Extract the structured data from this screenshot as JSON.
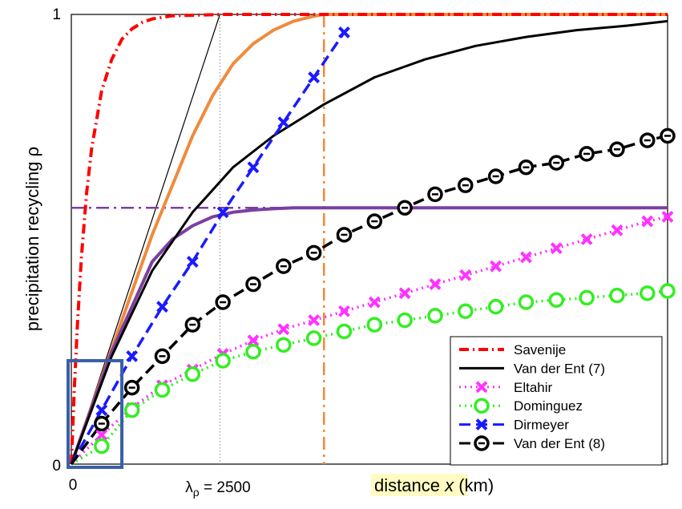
{
  "chart_data": {
    "type": "line",
    "xlabel": {
      "prefix": "distance",
      "var": "x",
      "unit": "(km)"
    },
    "ylabel": "precipitation recycling  ρ",
    "xlim": [
      0,
      5900
    ],
    "ylim": [
      0,
      1
    ],
    "yticks": [
      "0",
      "1"
    ],
    "xtick_zero": "0",
    "lambda_label": {
      "symbol": "λ",
      "sub": "ρ",
      "text": " = 2500"
    },
    "lambda_rho": 2500,
    "reference_lines": {
      "tangent": {
        "x": [
          0,
          1470
        ],
        "y": [
          0,
          1
        ],
        "color": "#000000"
      },
      "lambda_vertical": {
        "x": 1470,
        "color": "#888888"
      },
      "orange_vertical": {
        "x": 2500,
        "color": "#f08a3c"
      },
      "purple_horizontal": {
        "y": 0.57,
        "color": "#7b3fa0"
      }
    },
    "curves": {
      "orange_solid": {
        "color": "#f08a3c",
        "x": [
          0,
          500,
          800,
          1000,
          1200,
          1400,
          1600,
          1800,
          2000,
          2200,
          2400,
          2500,
          2700,
          3000,
          4000,
          5000,
          5900
        ],
        "y": [
          0,
          0.32,
          0.51,
          0.62,
          0.73,
          0.82,
          0.89,
          0.935,
          0.965,
          0.985,
          0.996,
          1.0,
          1.0,
          1.0,
          1.0,
          1.0,
          1.0
        ]
      },
      "purple_solid": {
        "color": "#7b3fa0",
        "x": [
          0,
          400,
          800,
          1000,
          1200,
          1400,
          1600,
          1800,
          2000,
          2200,
          2500,
          3000,
          4000,
          5000,
          5900
        ],
        "y": [
          0,
          0.25,
          0.45,
          0.5,
          0.53,
          0.55,
          0.56,
          0.565,
          0.568,
          0.57,
          0.57,
          0.57,
          0.57,
          0.57,
          0.57
        ]
      }
    },
    "series": [
      {
        "name": "Savenije",
        "color": "#ff0000",
        "style": "dashdot",
        "marker": "none",
        "x": [
          0,
          30,
          60,
          100,
          150,
          200,
          300,
          400,
          500,
          600,
          700,
          800,
          1000,
          1500,
          2500,
          5900
        ],
        "y": [
          0,
          0.17,
          0.31,
          0.46,
          0.6,
          0.7,
          0.83,
          0.9,
          0.945,
          0.968,
          0.982,
          0.99,
          0.997,
          1.0,
          1.0,
          1.0
        ]
      },
      {
        "name": "Van der Ent (7)",
        "color": "#000000",
        "style": "solid",
        "marker": "none",
        "x": [
          0,
          400,
          800,
          1200,
          1600,
          2000,
          2500,
          3000,
          3500,
          4000,
          4500,
          5000,
          5500,
          5900
        ],
        "y": [
          0,
          0.24,
          0.43,
          0.56,
          0.66,
          0.73,
          0.8,
          0.86,
          0.9,
          0.93,
          0.95,
          0.965,
          0.975,
          0.985
        ]
      },
      {
        "name": "Eltahir",
        "color": "#ff33ff",
        "style": "dotted",
        "marker": "x",
        "x": [
          0,
          300,
          600,
          900,
          1200,
          1500,
          1800,
          2100,
          2400,
          2700,
          3000,
          3300,
          3600,
          3900,
          4200,
          4500,
          4800,
          5100,
          5400,
          5700,
          5900
        ],
        "y": [
          0,
          0.065,
          0.125,
          0.175,
          0.21,
          0.245,
          0.275,
          0.3,
          0.32,
          0.34,
          0.36,
          0.38,
          0.4,
          0.42,
          0.44,
          0.46,
          0.48,
          0.5,
          0.52,
          0.54,
          0.55
        ]
      },
      {
        "name": "Dominguez",
        "color": "#33ee22",
        "style": "dotted",
        "marker": "o",
        "x": [
          0,
          300,
          600,
          900,
          1200,
          1500,
          1800,
          2100,
          2400,
          2700,
          3000,
          3300,
          3600,
          3900,
          4200,
          4500,
          4800,
          5100,
          5400,
          5700,
          5900
        ],
        "y": [
          0,
          0.04,
          0.12,
          0.165,
          0.2,
          0.23,
          0.25,
          0.265,
          0.28,
          0.295,
          0.31,
          0.32,
          0.33,
          0.34,
          0.35,
          0.36,
          0.365,
          0.37,
          0.375,
          0.38,
          0.385
        ]
      },
      {
        "name": "Dirmeyer",
        "color": "#1a1aff",
        "style": "dashed",
        "marker": "x",
        "x": [
          0,
          300,
          600,
          900,
          1200,
          1500,
          1800,
          2100,
          2400,
          2700
        ],
        "y": [
          0,
          0.12,
          0.24,
          0.35,
          0.45,
          0.56,
          0.66,
          0.76,
          0.86,
          0.96
        ]
      },
      {
        "name": "Van der Ent (8)",
        "color": "#000000",
        "style": "dashed",
        "marker": "ring",
        "x": [
          0,
          300,
          600,
          900,
          1200,
          1500,
          1800,
          2100,
          2400,
          2700,
          3000,
          3300,
          3600,
          3900,
          4200,
          4500,
          4800,
          5100,
          5400,
          5700,
          5900
        ],
        "y": [
          0,
          0.09,
          0.17,
          0.24,
          0.31,
          0.36,
          0.4,
          0.44,
          0.47,
          0.51,
          0.54,
          0.57,
          0.6,
          0.62,
          0.64,
          0.66,
          0.67,
          0.69,
          0.7,
          0.72,
          0.73
        ]
      }
    ],
    "highlight_box": {
      "x": [
        0,
        500
      ],
      "y": [
        0,
        0.23
      ],
      "color": "#3a5fa8"
    },
    "grid": false,
    "legend_position": "bottom-right"
  }
}
